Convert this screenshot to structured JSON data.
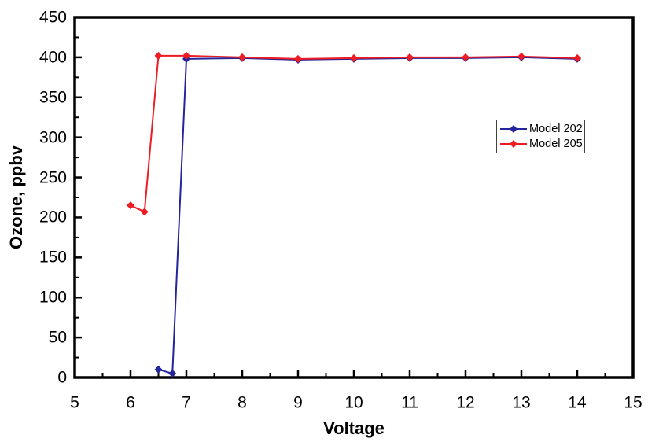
{
  "figure": {
    "background_color": "#ffffff",
    "frame_color": "#000000"
  },
  "axes": {
    "x": {
      "title": "Voltage",
      "min": 5,
      "max": 15,
      "major_step": 1,
      "minor_step": 0.5,
      "tick_labels": [
        "5",
        "6",
        "7",
        "8",
        "9",
        "10",
        "11",
        "12",
        "13",
        "14",
        "15"
      ]
    },
    "y": {
      "title": "Ozone, ppbv",
      "min": 0,
      "max": 450,
      "major_step": 50,
      "minor_step": 25,
      "tick_labels": [
        "0",
        "50",
        "100",
        "150",
        "200",
        "250",
        "300",
        "350",
        "400",
        "450"
      ]
    }
  },
  "legend": {
    "position": "middle-right",
    "border_color": "#404040",
    "items": [
      {
        "label": "Model 202",
        "color": "#24249C"
      },
      {
        "label": "Model 205",
        "color": "#EE1D23"
      }
    ]
  },
  "chart_data": {
    "type": "line",
    "title": "",
    "xlabel": "Voltage",
    "ylabel": "Ozone, ppbv",
    "xlim": [
      5,
      15
    ],
    "ylim": [
      0,
      450
    ],
    "grid": false,
    "marker": "diamond",
    "legend_position": "middle-right",
    "series": [
      {
        "name": "Model 202",
        "color": "#24249C",
        "points": [
          [
            6.5,
            10
          ],
          [
            6.75,
            5
          ],
          [
            7,
            398
          ],
          [
            8,
            399
          ],
          [
            9,
            397
          ],
          [
            10,
            398
          ],
          [
            11,
            399
          ],
          [
            12,
            399
          ],
          [
            13,
            400
          ],
          [
            14,
            398
          ]
        ]
      },
      {
        "name": "Model 205",
        "color": "#EE1D23",
        "points": [
          [
            6,
            215
          ],
          [
            6.25,
            207
          ],
          [
            6.5,
            402
          ],
          [
            7,
            402
          ],
          [
            8,
            400
          ],
          [
            9,
            398
          ],
          [
            10,
            399
          ],
          [
            11,
            400
          ],
          [
            12,
            400
          ],
          [
            13,
            401
          ],
          [
            14,
            399
          ]
        ]
      }
    ]
  }
}
